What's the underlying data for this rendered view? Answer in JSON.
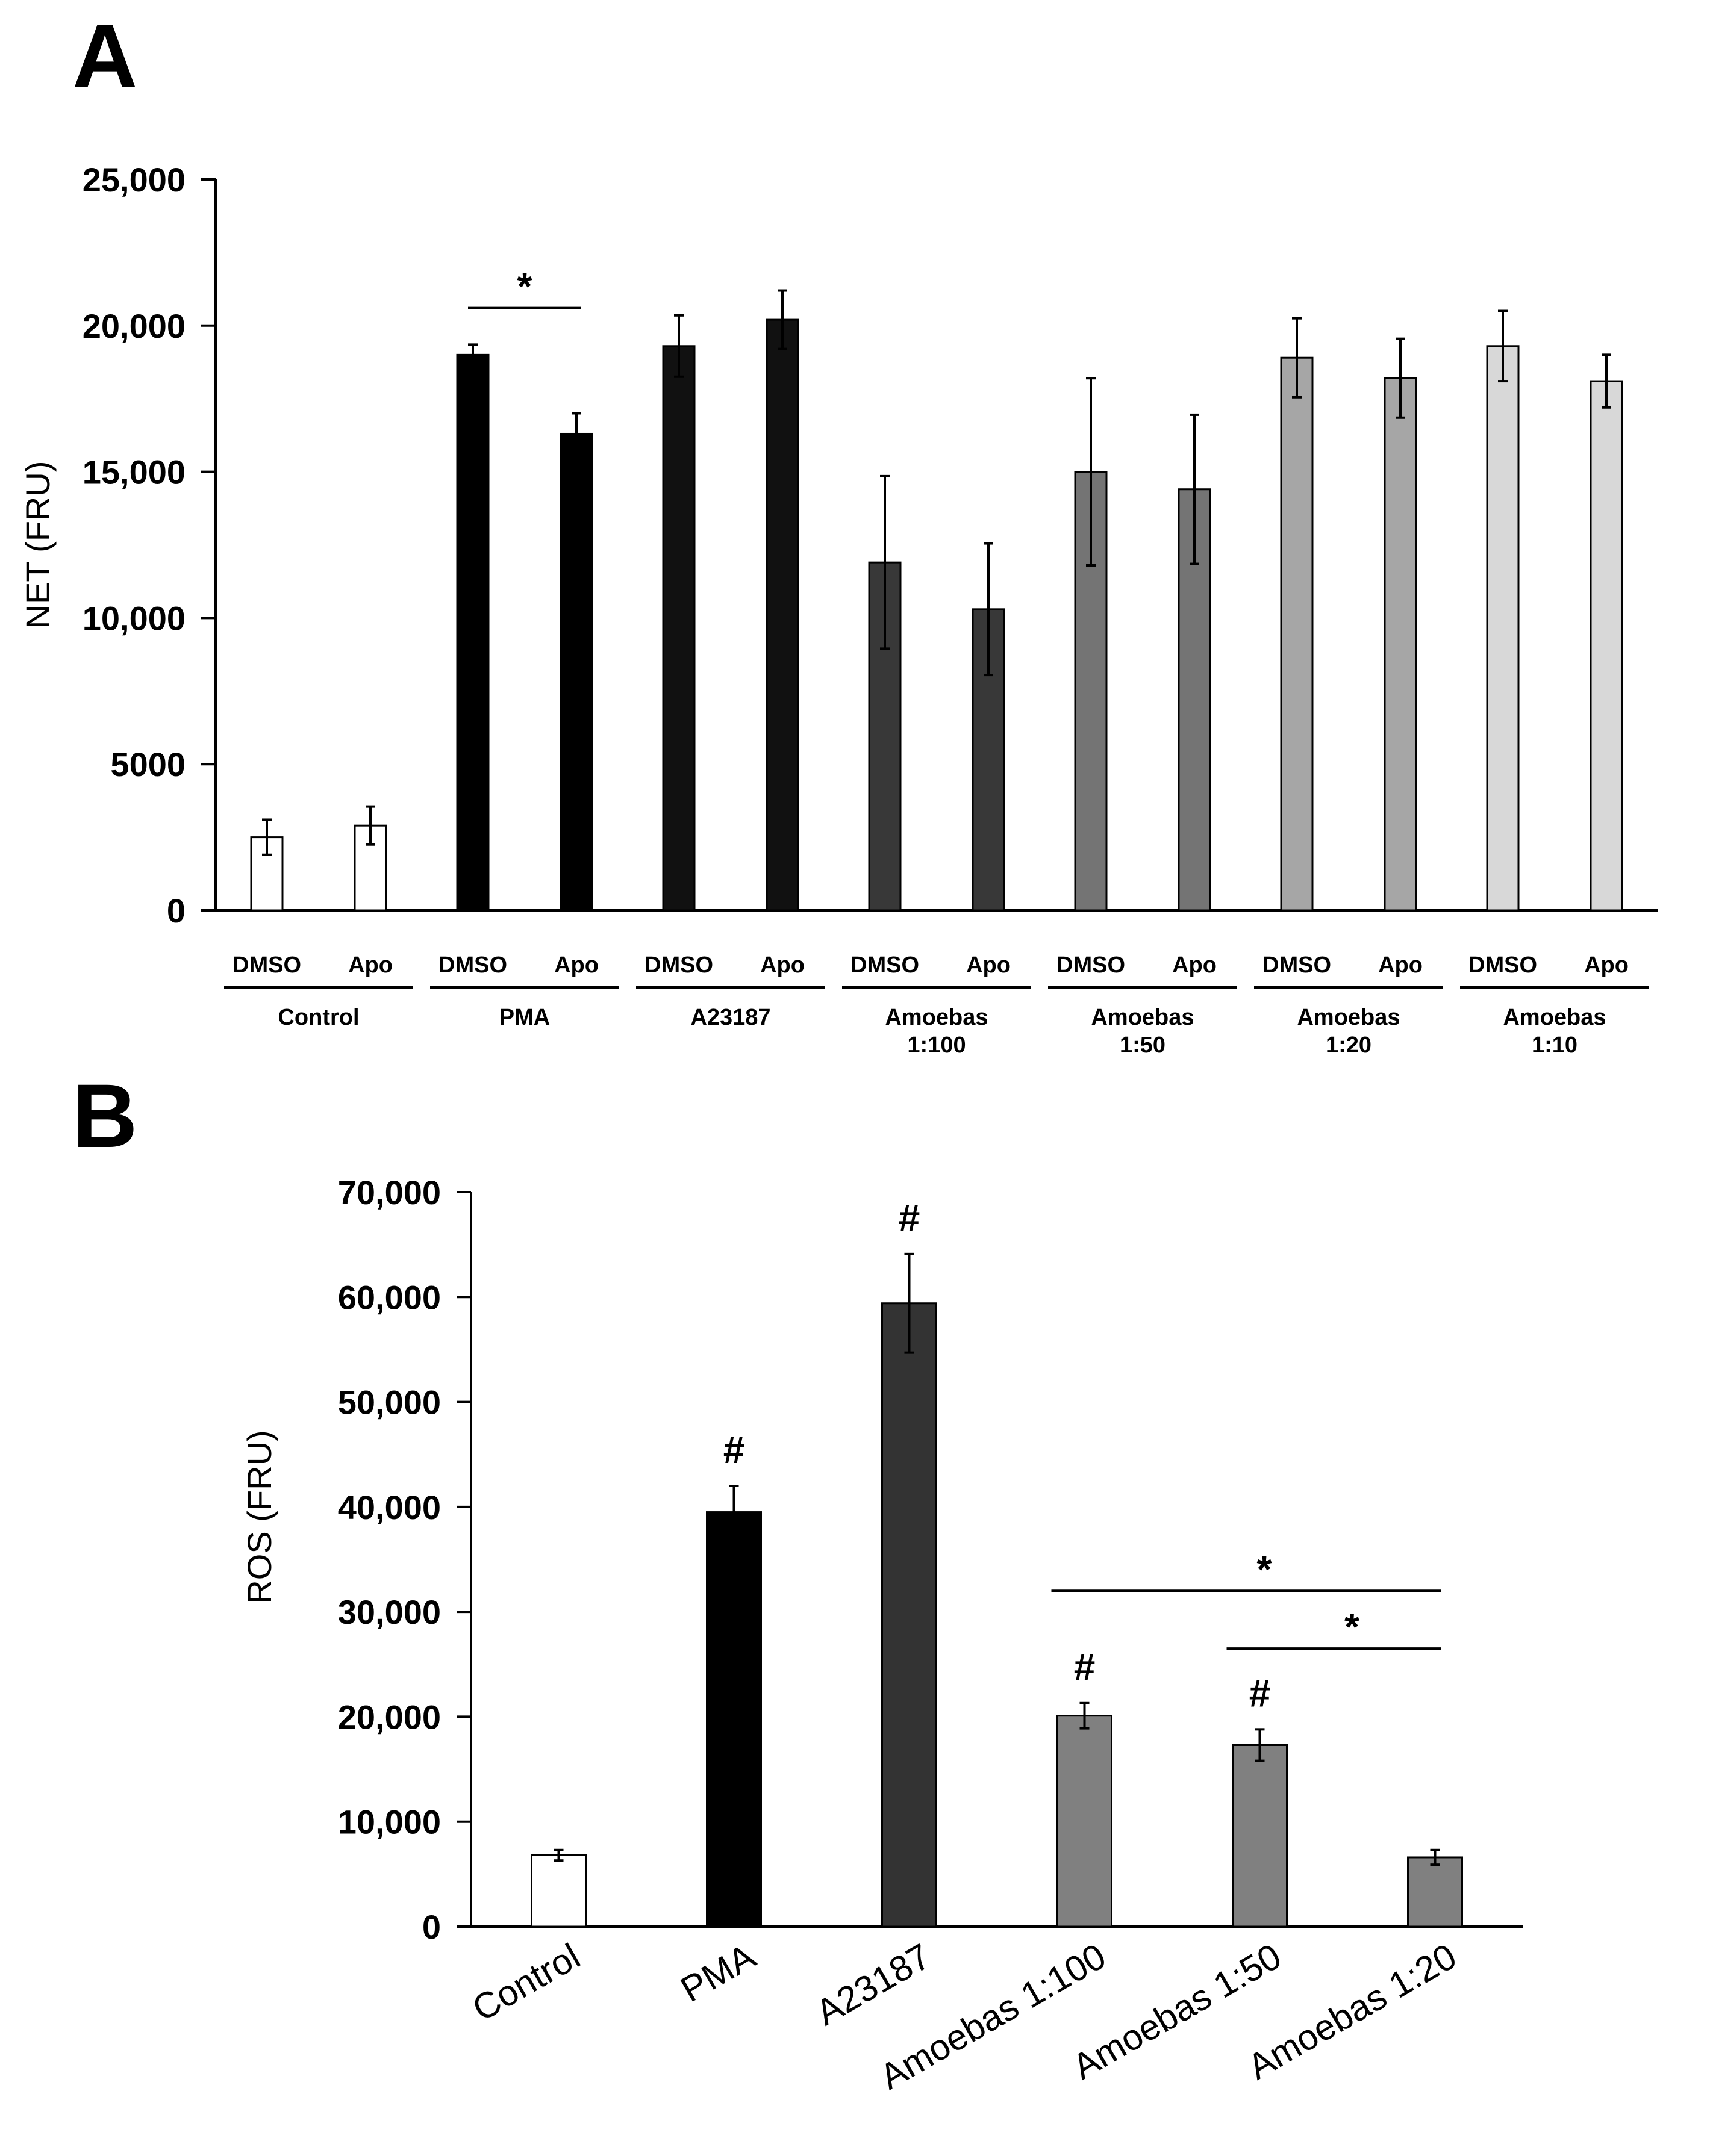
{
  "chart_data": [
    {
      "panel": "A",
      "type": "bar",
      "ylabel": "NET (FRU)",
      "ylim": [
        0,
        25000
      ],
      "yticks": [
        "0",
        "5000",
        "10,000",
        "15,000",
        "20,000",
        "25,000"
      ],
      "groups": [
        {
          "label": [
            "Control"
          ],
          "color": "#ffffff",
          "bars": [
            {
              "sub": "DMSO",
              "value": 2500,
              "err": 600
            },
            {
              "sub": "Apo",
              "value": 2900,
              "err": 650
            }
          ]
        },
        {
          "label": [
            "PMA"
          ],
          "color": "#000000",
          "bars": [
            {
              "sub": "DMSO",
              "value": 19000,
              "err": 350
            },
            {
              "sub": "Apo",
              "value": 16300,
              "err": 700
            }
          ]
        },
        {
          "label": [
            "A23187"
          ],
          "color": "#111111",
          "bars": [
            {
              "sub": "DMSO",
              "value": 19300,
              "err": 1050
            },
            {
              "sub": "Apo",
              "value": 20200,
              "err": 1000
            }
          ]
        },
        {
          "label": [
            "Amoebas",
            "1:100"
          ],
          "color": "#383838",
          "bars": [
            {
              "sub": "DMSO",
              "value": 11900,
              "err": 2950
            },
            {
              "sub": "Apo",
              "value": 10300,
              "err": 2250
            }
          ]
        },
        {
          "label": [
            "Amoebas",
            "1:50"
          ],
          "color": "#747474",
          "bars": [
            {
              "sub": "DMSO",
              "value": 15000,
              "err": 3200
            },
            {
              "sub": "Apo",
              "value": 14400,
              "err": 2550
            }
          ]
        },
        {
          "label": [
            "Amoebas",
            "1:20"
          ],
          "color": "#a6a6a6",
          "bars": [
            {
              "sub": "DMSO",
              "value": 18900,
              "err": 1350
            },
            {
              "sub": "Apo",
              "value": 18200,
              "err": 1350
            }
          ]
        },
        {
          "label": [
            "Amoebas",
            "1:10"
          ],
          "color": "#d8d8d8",
          "bars": [
            {
              "sub": "DMSO",
              "value": 19300,
              "err": 1200
            },
            {
              "sub": "Apo",
              "value": 18100,
              "err": 900
            }
          ]
        }
      ],
      "annotations": [
        {
          "text": "*",
          "from": [
            1,
            0
          ],
          "to": [
            1,
            1
          ],
          "y": 20600
        }
      ]
    },
    {
      "panel": "B",
      "type": "bar",
      "ylabel": "ROS (FRU)",
      "ylim": [
        0,
        70000
      ],
      "yticks": [
        "0",
        "10,000",
        "20,000",
        "30,000",
        "40,000",
        "50,000",
        "60,000",
        "70,000"
      ],
      "categories": [
        "Control",
        "PMA",
        "A23187",
        "Amoebas 1:100",
        "Amoebas 1:50",
        "Amoebas 1:20"
      ],
      "values": [
        6800,
        39500,
        59400,
        20100,
        17300,
        6600
      ],
      "errors": [
        500,
        2500,
        4700,
        1200,
        1500,
        700
      ],
      "colors": [
        "#ffffff",
        "#000000",
        "#333333",
        "#808080",
        "#808080",
        "#808080"
      ],
      "marks": [
        "",
        "#",
        "#",
        "#",
        "#",
        ""
      ],
      "annotations": [
        {
          "text": "*",
          "from": 3,
          "to": 5,
          "y": 32000
        },
        {
          "text": "*",
          "from": 4,
          "to": 5,
          "y": 26500
        }
      ]
    }
  ]
}
